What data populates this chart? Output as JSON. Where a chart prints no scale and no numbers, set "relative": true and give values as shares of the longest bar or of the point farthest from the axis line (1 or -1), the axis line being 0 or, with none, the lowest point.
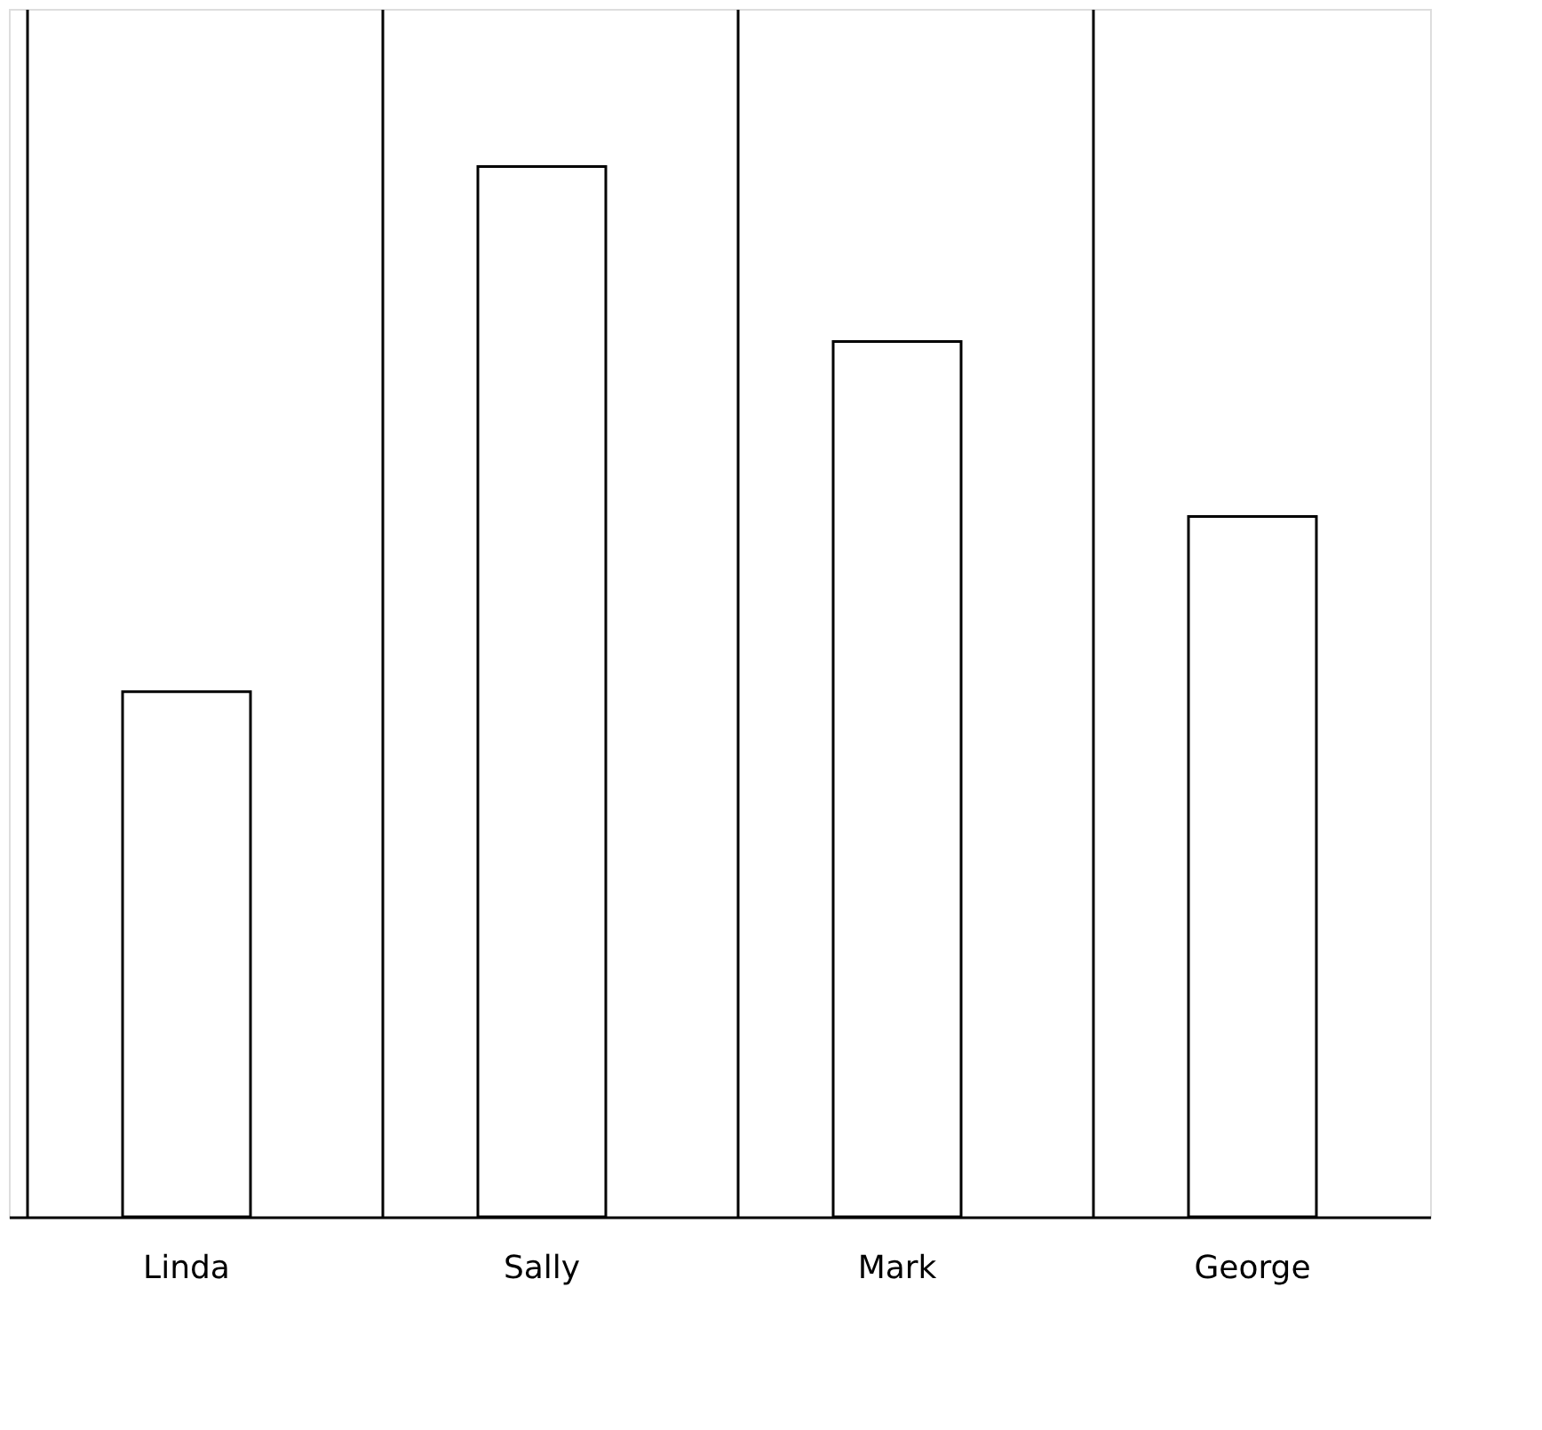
{
  "chart_data": {
    "type": "bar",
    "relative": true,
    "categories": [
      "Linda",
      "Sally",
      "Mark",
      "George"
    ],
    "values": [
      0.5,
      1,
      0.8333,
      0.6667
    ],
    "color": "#ffffff",
    "grid": "x"
  }
}
